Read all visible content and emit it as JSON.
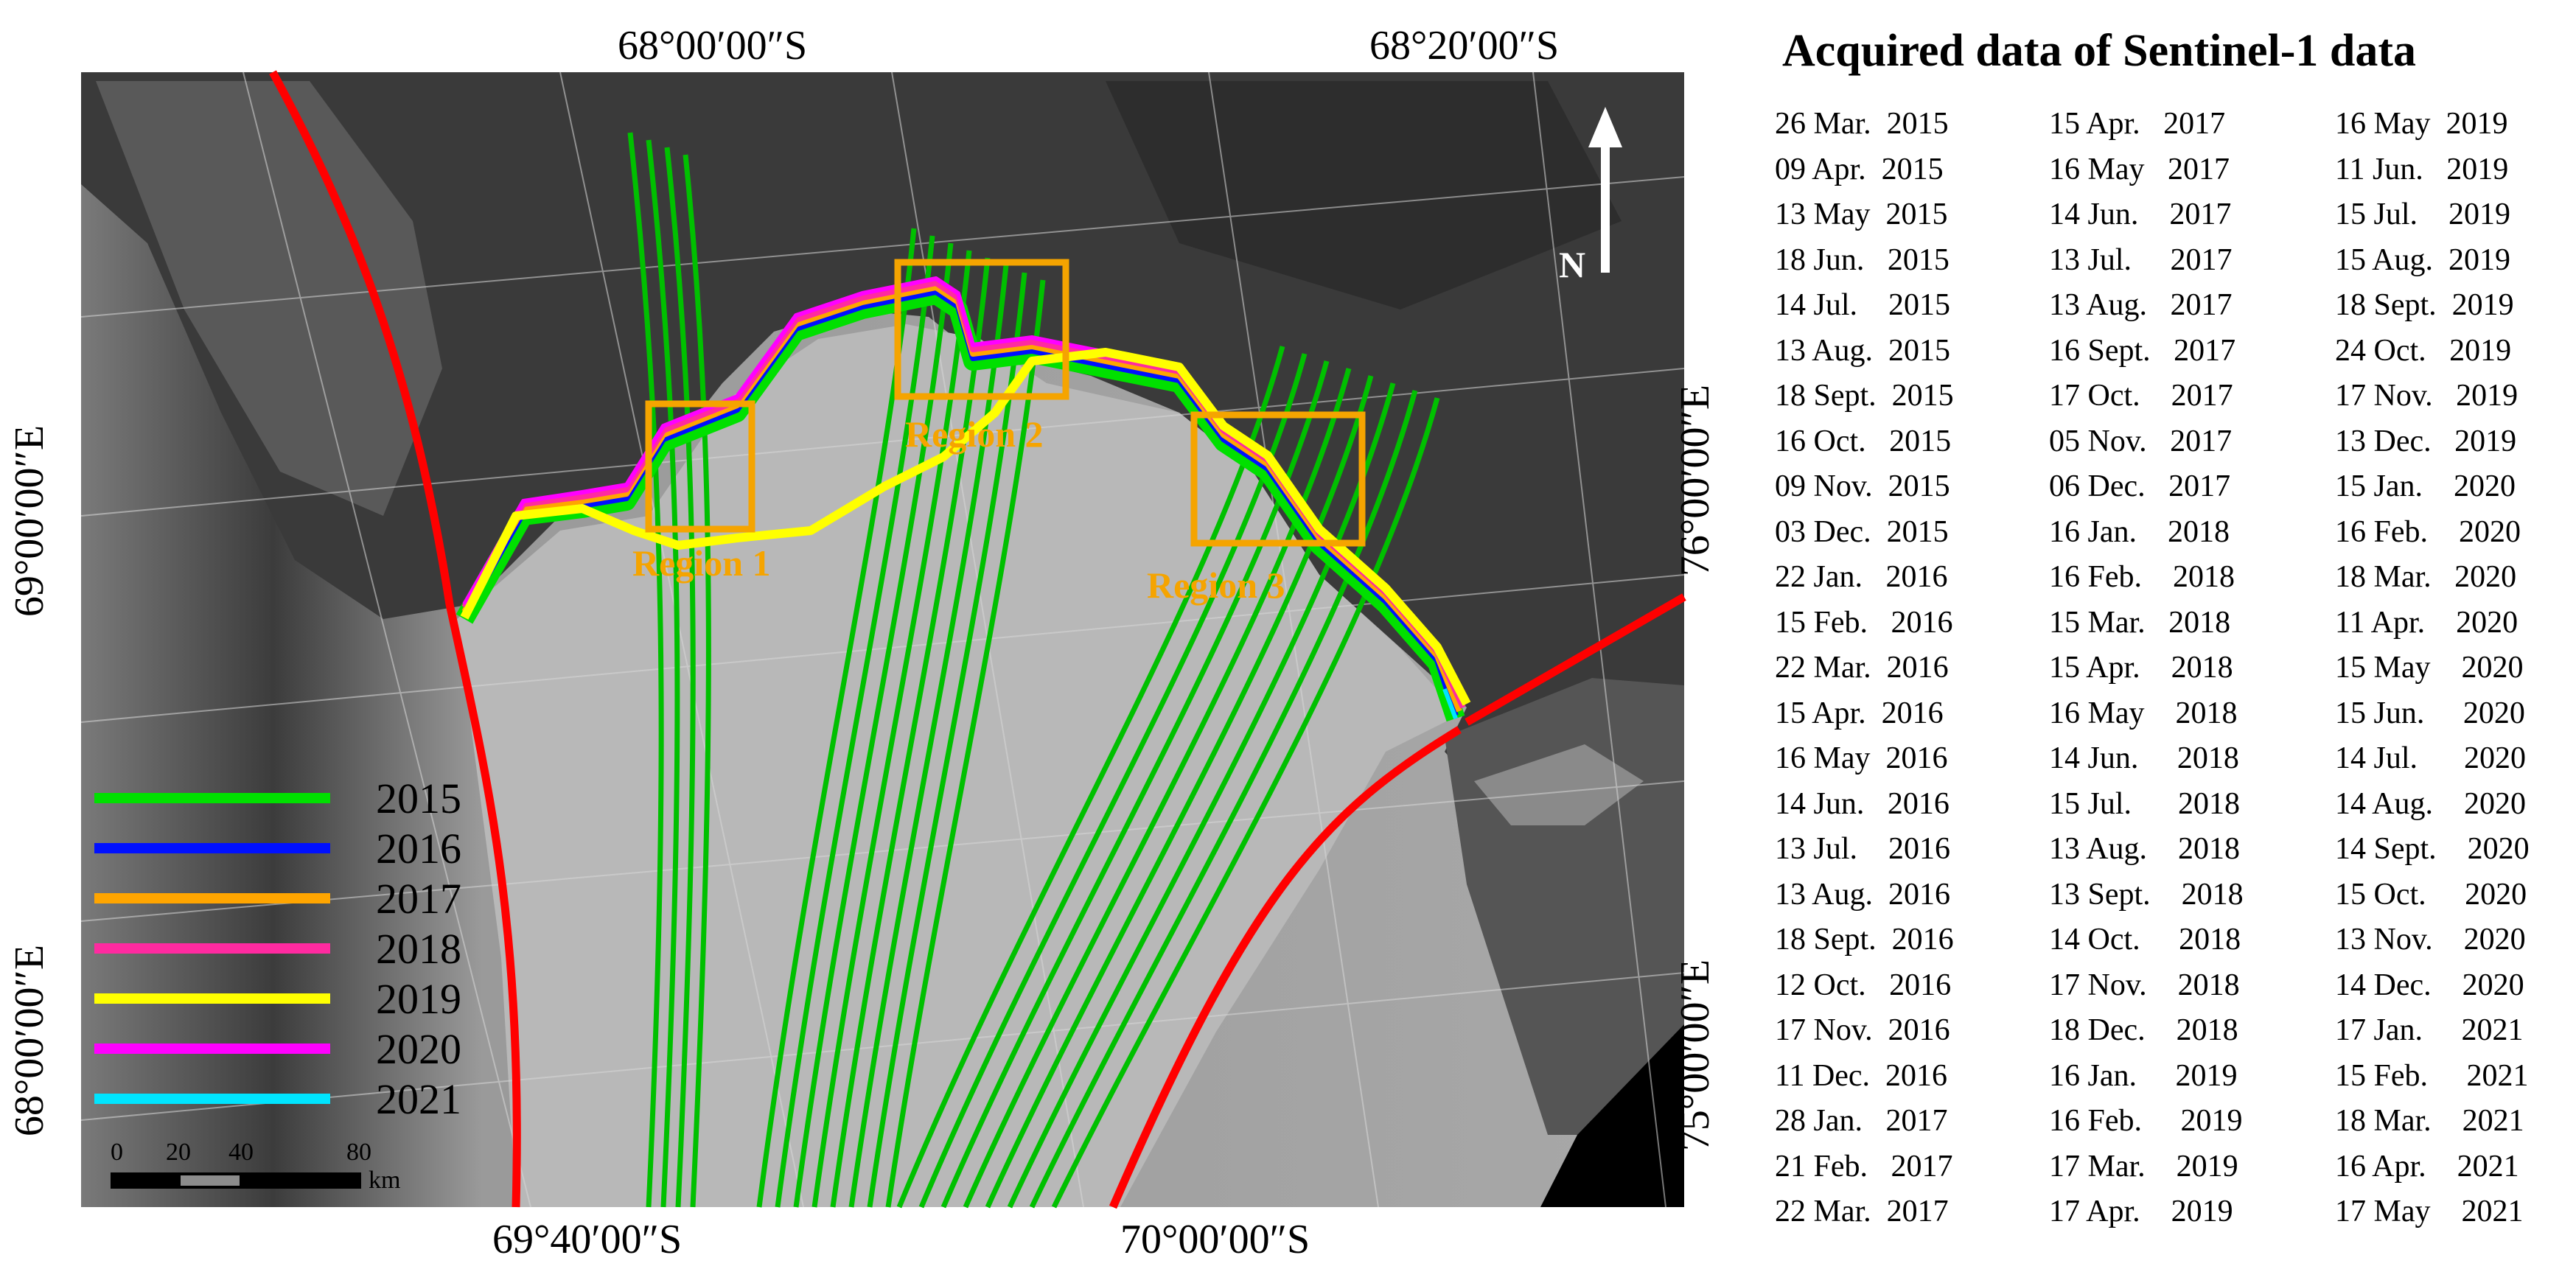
{
  "map": {
    "top_labels": [
      "68°00′00″S",
      "68°20′00″S"
    ],
    "bottom_labels": [
      "69°40′00″S",
      "70°00′00″S"
    ],
    "left_labels": [
      "69°00′00″E",
      "68°00′00″E"
    ],
    "right_labels": [
      "76°00′00″E",
      "75°00′00″E"
    ],
    "regions": [
      "Region 1",
      "Region 2",
      "Region 3"
    ],
    "north_label": "N",
    "legend": [
      {
        "year": "2015",
        "color": "#00e000"
      },
      {
        "year": "2016",
        "color": "#0010ff"
      },
      {
        "year": "2017",
        "color": "#ffa500"
      },
      {
        "year": "2018",
        "color": "#ff2aa0"
      },
      {
        "year": "2019",
        "color": "#ffff00"
      },
      {
        "year": "2020",
        "color": "#ff00ff"
      },
      {
        "year": "2021",
        "color": "#00e5ff"
      }
    ],
    "scale": {
      "ticks": [
        "0",
        "20",
        "40",
        "80"
      ],
      "unit": "km"
    },
    "colors": {
      "drainage_boundary": "#ff0000",
      "flowlines": "#00c000",
      "region_box": "#f5a400"
    }
  },
  "panel": {
    "title": "Acquired data of Sentinel-1 data",
    "columns": [
      [
        "26 Mar.  2015",
        "09 Apr.  2015",
        "13 May  2015",
        "18 Jun.   2015",
        "14 Jul.    2015",
        "13 Aug.  2015",
        "18 Sept.  2015",
        "16 Oct.   2015",
        "09 Nov.  2015",
        "03 Dec.  2015",
        "22 Jan.   2016",
        "15 Feb.   2016",
        "22 Mar.  2016",
        "15 Apr.  2016",
        "16 May  2016",
        "14 Jun.   2016",
        "13 Jul.    2016",
        "13 Aug.  2016",
        "18 Sept.  2016",
        "12 Oct.   2016",
        "17 Nov.  2016",
        "11 Dec.  2016",
        "28 Jan.   2017",
        "21 Feb.   2017",
        "22 Mar.  2017"
      ],
      [
        "15 Apr.   2017",
        "16 May   2017",
        "14 Jun.    2017",
        "13 Jul.     2017",
        "13 Aug.   2017",
        "16 Sept.   2017",
        "17 Oct.    2017",
        "05 Nov.   2017",
        "06 Dec.   2017",
        "16 Jan.    2018",
        "16 Feb.    2018",
        "15 Mar.   2018",
        "15 Apr.    2018",
        "16 May    2018",
        "14 Jun.     2018",
        "15 Jul.      2018",
        "13 Aug.    2018",
        "13 Sept.    2018",
        "14 Oct.     2018",
        "17 Nov.    2018",
        "18 Dec.    2018",
        "16 Jan.     2019",
        "16 Feb.     2019",
        "17 Mar.    2019",
        "17 Apr.    2019"
      ],
      [
        "16 May  2019",
        "11 Jun.   2019",
        "15 Jul.    2019",
        "15 Aug.  2019",
        "18 Sept.  2019",
        "24 Oct.   2019",
        "17 Nov.   2019",
        "13 Dec.   2019",
        "15 Jan.    2020",
        "16 Feb.    2020",
        "18 Mar.   2020",
        "11 Apr.    2020",
        "15 May    2020",
        "15 Jun.     2020",
        "14 Jul.      2020",
        "14 Aug.    2020",
        "14 Sept.    2020",
        "15 Oct.     2020",
        "13 Nov.    2020",
        "14 Dec.    2020",
        "17 Jan.     2021",
        "15 Feb.     2021",
        "18 Mar.    2021",
        "16 Apr.    2021",
        "17 May    2021"
      ]
    ]
  }
}
